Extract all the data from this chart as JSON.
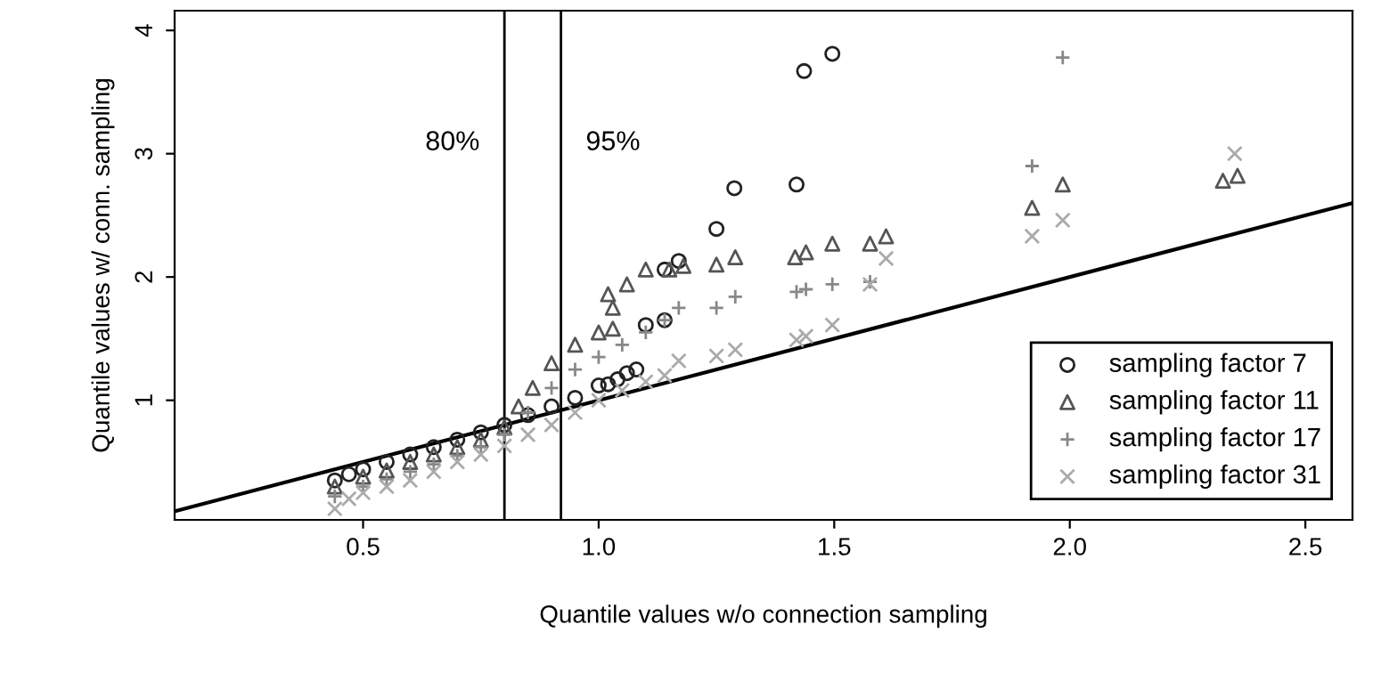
{
  "chart_data": {
    "type": "scatter",
    "xlabel": "Quantile values w/o connection sampling",
    "ylabel": "Quantile values w/ conn. sampling",
    "xlim": [
      0.1,
      2.6
    ],
    "ylim": [
      0.03,
      4.16
    ],
    "xticks": [
      0.5,
      {
        "value": 1,
        "label": "1.0"
      },
      1.5,
      {
        "value": 2,
        "label": "2.0"
      },
      2.5
    ],
    "yticks": [
      1,
      2,
      3,
      4
    ],
    "grid": false,
    "legend": "bottom right",
    "series": [
      {
        "name": "sampling factor 7",
        "color": "#222222",
        "marker": "circle",
        "x": [
          0.44,
          0.47,
          0.5,
          0.55,
          0.6,
          0.65,
          0.7,
          0.75,
          0.8,
          0.85,
          0.9,
          0.95,
          1.0,
          1.02,
          1.04,
          1.06,
          1.08,
          1.1,
          1.14,
          1.14,
          1.17,
          1.25,
          1.288,
          1.42,
          1.436,
          1.496
        ],
        "values": [
          0.35,
          0.4,
          0.44,
          0.5,
          0.56,
          0.62,
          0.68,
          0.74,
          0.8,
          0.88,
          0.95,
          1.02,
          1.12,
          1.13,
          1.17,
          1.22,
          1.25,
          1.61,
          1.65,
          2.06,
          2.13,
          2.39,
          2.72,
          2.75,
          3.67,
          3.81
        ]
      },
      {
        "name": "sampling factor 11",
        "color": "#555555",
        "marker": "triangle",
        "x": [
          0.44,
          0.5,
          0.55,
          0.6,
          0.65,
          0.7,
          0.75,
          0.8,
          0.83,
          0.86,
          0.9,
          0.95,
          1.0,
          1.03,
          1.02,
          1.03,
          1.06,
          1.1,
          1.15,
          1.18,
          1.25,
          1.29,
          1.417,
          1.44,
          1.496,
          1.576,
          1.61,
          1.92,
          1.985,
          2.325,
          2.356
        ],
        "values": [
          0.3,
          0.38,
          0.43,
          0.5,
          0.56,
          0.62,
          0.68,
          0.78,
          0.95,
          1.1,
          1.3,
          1.45,
          1.55,
          1.58,
          1.86,
          1.75,
          1.94,
          2.06,
          2.06,
          2.09,
          2.1,
          2.16,
          2.16,
          2.2,
          2.27,
          2.27,
          2.33,
          2.56,
          2.75,
          2.78,
          2.82
        ]
      },
      {
        "name": "sampling factor 17",
        "color": "#888888",
        "marker": "plus",
        "x": [
          0.44,
          0.5,
          0.55,
          0.6,
          0.65,
          0.7,
          0.75,
          0.8,
          0.85,
          0.9,
          0.95,
          1.0,
          1.05,
          1.1,
          1.14,
          1.17,
          1.25,
          1.29,
          1.42,
          1.44,
          1.496,
          1.576,
          1.92,
          1.985
        ],
        "values": [
          0.22,
          0.3,
          0.36,
          0.42,
          0.48,
          0.55,
          0.62,
          0.72,
          0.9,
          1.1,
          1.25,
          1.35,
          1.45,
          1.55,
          1.65,
          1.75,
          1.75,
          1.84,
          1.88,
          1.9,
          1.94,
          1.96,
          2.9,
          3.78
        ]
      },
      {
        "name": "sampling factor 31",
        "color": "#aaaaaa",
        "marker": "cross",
        "x": [
          0.44,
          0.47,
          0.5,
          0.55,
          0.6,
          0.65,
          0.7,
          0.75,
          0.8,
          0.85,
          0.9,
          0.95,
          1.0,
          1.05,
          1.1,
          1.14,
          1.17,
          1.25,
          1.29,
          1.42,
          1.44,
          1.496,
          1.576,
          1.61,
          1.92,
          1.985,
          2.35
        ],
        "values": [
          0.12,
          0.2,
          0.25,
          0.3,
          0.35,
          0.42,
          0.5,
          0.56,
          0.63,
          0.72,
          0.8,
          0.9,
          1.0,
          1.08,
          1.15,
          1.2,
          1.32,
          1.36,
          1.41,
          1.49,
          1.52,
          1.61,
          1.94,
          2.15,
          2.33,
          2.46,
          3.0
        ]
      },
      {
        "type": "line",
        "color": "#000000",
        "x": [
          0.1,
          2.6
        ],
        "values": [
          0.1,
          2.6
        ]
      }
    ],
    "ref_lines": [
      {
        "axis": "x",
        "value": 0.8,
        "color": "#000000"
      },
      {
        "axis": "x",
        "value": 0.92,
        "color": "#000000"
      }
    ],
    "annotations": [
      "80%",
      "95%"
    ]
  }
}
